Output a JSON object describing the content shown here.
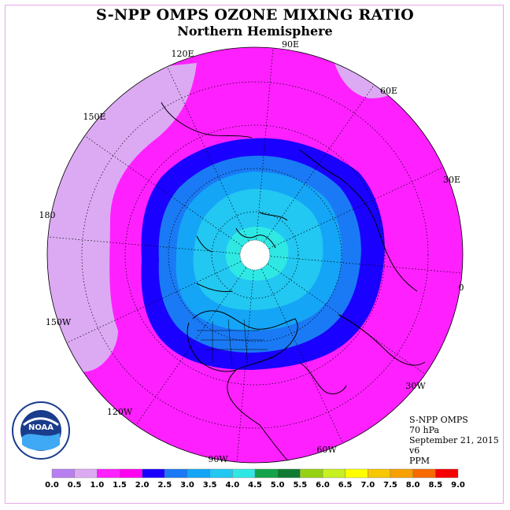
{
  "header": {
    "title": "S-NPP OMPS OZONE MIXING RATIO",
    "subtitle": "Northern Hemisphere"
  },
  "longitude_labels": [
    "90E",
    "60E",
    "30E",
    "0",
    "30W",
    "60W",
    "90W",
    "120W",
    "150W",
    "180",
    "150E",
    "120E"
  ],
  "info_block": {
    "instrument": "S-NPP OMPS",
    "level": "70 hPa",
    "date": "September 21, 2015",
    "version": "v6",
    "units": "PPM"
  },
  "logo": {
    "text": "NOAA"
  },
  "colorbar": {
    "ticks": [
      "0.0",
      "0.5",
      "1.0",
      "1.5",
      "2.0",
      "2.5",
      "3.0",
      "3.5",
      "4.0",
      "4.5",
      "5.0",
      "5.5",
      "6.0",
      "6.5",
      "7.0",
      "7.5",
      "8.0",
      "8.5",
      "9.0"
    ],
    "colors": [
      "#b77fef",
      "#dcaaf3",
      "#ff20ff",
      "#ff00f0",
      "#1a00ff",
      "#1a7af5",
      "#14a5f7",
      "#22c7f2",
      "#2fe8e4",
      "#14a34a",
      "#107a32",
      "#96d214",
      "#c7f020",
      "#ffff00",
      "#f7c700",
      "#f7a000",
      "#f76a00",
      "#f70000",
      "#966432"
    ]
  },
  "map": {
    "center_value_ppm": 4.0,
    "outer_value_ppm": 1.0,
    "zones": [
      {
        "band": "0.5-1.0",
        "color": "#dcaaf3"
      },
      {
        "band": "1.0-1.5",
        "color": "#ff20ff"
      },
      {
        "band": "1.5-2.0",
        "color": "#1a00ff"
      },
      {
        "band": "2.0-2.5",
        "color": "#1a7af5"
      },
      {
        "band": "2.5-3.0",
        "color": "#14a5f7"
      },
      {
        "band": "3.0-3.5",
        "color": "#22c7f2"
      },
      {
        "band": "3.5-4.0",
        "color": "#2fe8e4"
      }
    ]
  }
}
